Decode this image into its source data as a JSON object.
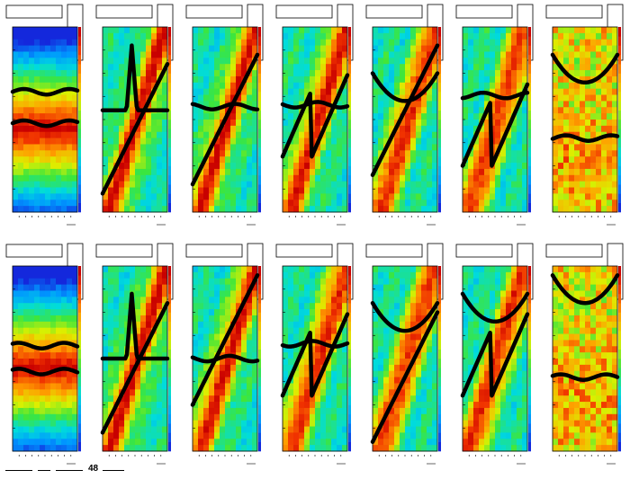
{
  "chart_data": [
    {
      "type": "heatmap",
      "name": "panel-1-1",
      "field": "band",
      "tracks": [
        {
          "kind": "flat",
          "y": 0.65
        },
        {
          "kind": "flat",
          "y": 0.48
        }
      ]
    },
    {
      "type": "heatmap",
      "name": "panel-1-2",
      "field": "diagonal",
      "tracks": [
        {
          "kind": "spike",
          "y": 0.55
        },
        {
          "kind": "ramp",
          "y": 0.1
        }
      ]
    },
    {
      "type": "heatmap",
      "name": "panel-1-3",
      "field": "diagonal",
      "tracks": [
        {
          "kind": "flat",
          "y": 0.57
        },
        {
          "kind": "ramp",
          "y": 0.15
        }
      ]
    },
    {
      "type": "heatmap",
      "name": "panel-1-4",
      "field": "diagonal",
      "tracks": [
        {
          "kind": "flat",
          "y": 0.58
        },
        {
          "kind": "sawtooth",
          "y": 0.3
        }
      ]
    },
    {
      "type": "heatmap",
      "name": "panel-1-5",
      "field": "diagonal",
      "tracks": [
        {
          "kind": "curve",
          "y": 0.6
        },
        {
          "kind": "ramp",
          "y": 0.2
        }
      ]
    },
    {
      "type": "heatmap",
      "name": "panel-1-6",
      "field": "diagonal",
      "tracks": [
        {
          "kind": "flat",
          "y": 0.63
        },
        {
          "kind": "sawtooth",
          "y": 0.25
        }
      ]
    },
    {
      "type": "heatmap",
      "name": "panel-1-7",
      "field": "noisy",
      "tracks": [
        {
          "kind": "curve",
          "y": 0.7
        },
        {
          "kind": "flat",
          "y": 0.4
        }
      ]
    },
    {
      "type": "heatmap",
      "name": "panel-2-1",
      "field": "band",
      "tracks": [
        {
          "kind": "flat",
          "y": 0.57
        },
        {
          "kind": "flat",
          "y": 0.43
        }
      ]
    },
    {
      "type": "heatmap",
      "name": "panel-2-2",
      "field": "diagonal",
      "tracks": [
        {
          "kind": "spike",
          "y": 0.5
        },
        {
          "kind": "ramp",
          "y": 0.1
        }
      ]
    },
    {
      "type": "heatmap",
      "name": "panel-2-3",
      "field": "diagonal",
      "tracks": [
        {
          "kind": "flat",
          "y": 0.5
        },
        {
          "kind": "ramp",
          "y": 0.25
        }
      ]
    },
    {
      "type": "heatmap",
      "name": "panel-2-4",
      "field": "diagonal",
      "tracks": [
        {
          "kind": "flat",
          "y": 0.58
        },
        {
          "kind": "sawtooth",
          "y": 0.3
        }
      ]
    },
    {
      "type": "heatmap",
      "name": "panel-2-5",
      "field": "diagonal",
      "tracks": [
        {
          "kind": "curve",
          "y": 0.65
        },
        {
          "kind": "ramp",
          "y": 0.05
        }
      ]
    },
    {
      "type": "heatmap",
      "name": "panel-2-6",
      "field": "diagonal",
      "tracks": [
        {
          "kind": "curve",
          "y": 0.7
        },
        {
          "kind": "sawtooth",
          "y": 0.3
        }
      ]
    },
    {
      "type": "heatmap",
      "name": "panel-2-7",
      "field": "noisy",
      "tracks": [
        {
          "kind": "curve",
          "y": 0.8
        },
        {
          "kind": "flat",
          "y": 0.4
        }
      ]
    }
  ],
  "footer": {
    "number": "48"
  }
}
